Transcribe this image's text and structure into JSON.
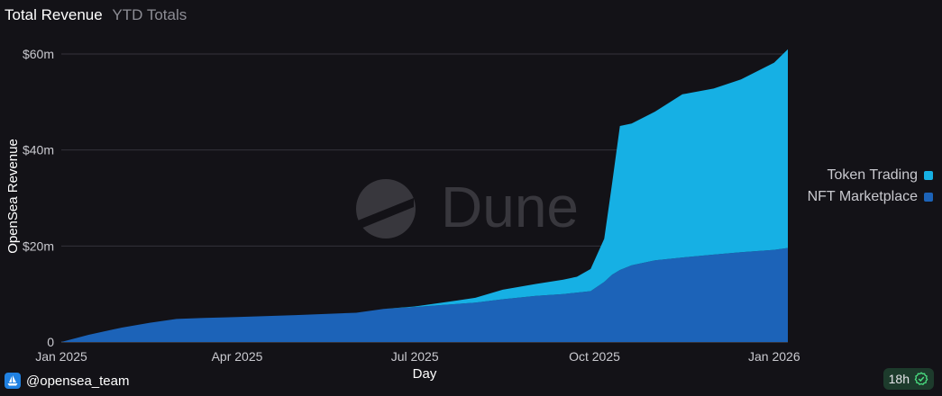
{
  "header": {
    "title": "Total Revenue",
    "subtitle": "YTD Totals"
  },
  "watermark": {
    "text": "Dune"
  },
  "footer": {
    "handle": "@opensea_team",
    "badge": "18h"
  },
  "icons": {
    "footer": "opensea-boat-icon",
    "badge": "check-circle-icon"
  },
  "colors": {
    "background": "#131217",
    "token_trading": "#16b0e4",
    "nft_marketplace": "#1c63b8",
    "badge_bg": "#1d3b2c"
  },
  "chart_data": {
    "type": "area",
    "stacked": true,
    "xlabel": "Day",
    "ylabel": "OpenSea Revenue",
    "x_ticks": [
      "Jan 2025",
      "Apr 2025",
      "Jul 2025",
      "Oct 2025",
      "Jan 2026"
    ],
    "y_ticks": [
      "0",
      "$20m",
      "$40m",
      "$60m"
    ],
    "y_tick_values": [
      0,
      20,
      40,
      60
    ],
    "ylim": [
      0,
      60
    ],
    "y_unit": "$m",
    "x_range": [
      "2025-01-01",
      "2026-01-08"
    ],
    "grid": "horizontal",
    "legend_position": "right",
    "dates": [
      "2025-01-01",
      "2025-01-15",
      "2025-02-01",
      "2025-02-15",
      "2025-03-01",
      "2025-03-15",
      "2025-04-01",
      "2025-05-01",
      "2025-06-01",
      "2025-06-15",
      "2025-07-01",
      "2025-07-15",
      "2025-08-01",
      "2025-08-15",
      "2025-09-01",
      "2025-09-15",
      "2025-09-22",
      "2025-09-29",
      "2025-10-06",
      "2025-10-10",
      "2025-10-14",
      "2025-10-20",
      "2025-11-01",
      "2025-11-15",
      "2025-12-01",
      "2025-12-15",
      "2026-01-01",
      "2026-01-08"
    ],
    "series": [
      {
        "name": "NFT Marketplace",
        "values": [
          0,
          1.5,
          3.0,
          4.0,
          4.8,
          5.0,
          5.2,
          5.6,
          6.1,
          6.9,
          7.3,
          7.7,
          8.2,
          8.9,
          9.6,
          10.0,
          10.3,
          10.6,
          12.5,
          14.0,
          15.0,
          16.0,
          17.0,
          17.6,
          18.2,
          18.7,
          19.2,
          19.6
        ]
      },
      {
        "name": "Token Trading",
        "values": [
          0,
          0,
          0,
          0,
          0,
          0,
          0,
          0,
          0,
          0,
          0.1,
          0.5,
          1.0,
          2.0,
          2.5,
          3.0,
          3.3,
          4.6,
          9.0,
          19.0,
          30.0,
          29.5,
          31.0,
          34.0,
          34.6,
          36.0,
          39.0,
          41.4
        ]
      }
    ]
  }
}
